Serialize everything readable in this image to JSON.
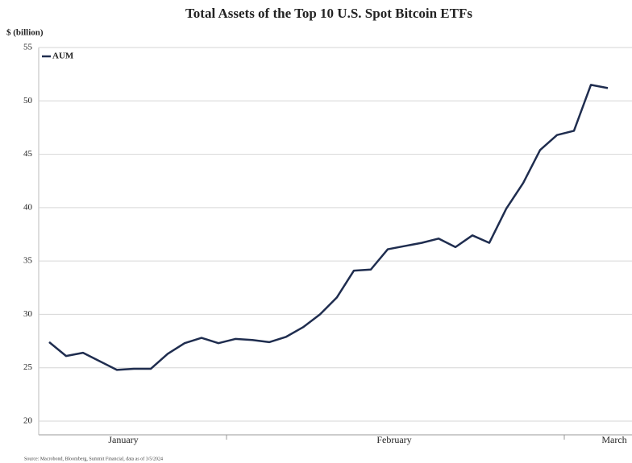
{
  "chart_data": {
    "type": "line",
    "title": "Total Assets of the Top 10 U.S. Spot Bitcoin ETFs",
    "y_axis_label": "$ (billion)",
    "source": "Source: Macrobond, Bloomberg, Summit Financial, data as of 3/5/2024",
    "legend": "top-left",
    "grid": true,
    "categories": [
      null,
      null,
      null,
      null,
      "January",
      null,
      null,
      null,
      null,
      null,
      null,
      null,
      null,
      null,
      null,
      null,
      null,
      null,
      null,
      null,
      "February",
      null,
      null,
      null,
      null,
      null,
      null,
      null,
      null,
      null,
      null,
      null,
      null,
      "March"
    ],
    "series": [
      {
        "name": "AUM",
        "color": "#1f2d4f",
        "values": [
          27.4,
          26.1,
          26.4,
          25.6,
          24.8,
          24.9,
          24.9,
          26.3,
          27.3,
          27.8,
          27.3,
          27.7,
          27.6,
          27.4,
          27.9,
          28.8,
          30.0,
          31.6,
          34.1,
          34.2,
          36.1,
          36.4,
          36.7,
          37.1,
          36.3,
          37.4,
          36.7,
          39.9,
          42.3,
          45.4,
          46.8,
          47.2,
          51.5,
          51.2
        ]
      }
    ],
    "ylim": [
      20,
      55
    ],
    "yticks": [
      20,
      25,
      30,
      35,
      40,
      45,
      50,
      55
    ]
  }
}
